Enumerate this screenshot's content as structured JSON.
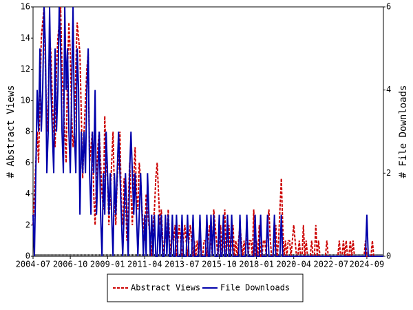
{
  "chart_data": {
    "type": "line",
    "x": [
      "2004-07",
      "2004-08",
      "2004-09",
      "2004-10",
      "2004-11",
      "2004-12",
      "2005-01",
      "2005-02",
      "2005-03",
      "2005-04",
      "2005-05",
      "2005-06",
      "2005-07",
      "2005-08",
      "2005-09",
      "2005-10",
      "2005-11",
      "2005-12",
      "2006-01",
      "2006-02",
      "2006-03",
      "2006-04",
      "2006-05",
      "2006-06",
      "2006-07",
      "2006-08",
      "2006-09",
      "2006-10",
      "2006-11",
      "2006-12",
      "2007-01",
      "2007-02",
      "2007-03",
      "2007-04",
      "2007-05",
      "2007-06",
      "2007-07",
      "2007-08",
      "2007-09",
      "2007-10",
      "2007-11",
      "2007-12",
      "2008-01",
      "2008-02",
      "2008-03",
      "2008-04",
      "2008-05",
      "2008-06",
      "2008-07",
      "2008-08",
      "2008-09",
      "2008-10",
      "2008-11",
      "2008-12",
      "2009-01",
      "2009-02",
      "2009-03",
      "2009-04",
      "2009-05",
      "2009-06",
      "2009-07",
      "2009-08",
      "2009-09",
      "2009-10",
      "2009-11",
      "2009-12",
      "2010-01",
      "2010-02",
      "2010-03",
      "2010-04",
      "2010-05",
      "2010-06",
      "2010-07",
      "2010-08",
      "2010-09",
      "2010-10",
      "2010-11",
      "2010-12",
      "2011-01",
      "2011-02",
      "2011-03",
      "2011-04",
      "2011-05",
      "2011-06",
      "2011-07",
      "2011-08",
      "2011-09",
      "2011-10",
      "2011-11",
      "2011-12",
      "2012-01",
      "2012-02",
      "2012-03",
      "2012-04",
      "2012-05",
      "2012-06",
      "2012-07",
      "2012-08",
      "2012-09",
      "2012-10",
      "2012-11",
      "2012-12",
      "2013-01",
      "2013-02",
      "2013-03",
      "2013-04",
      "2013-05",
      "2013-06",
      "2013-07",
      "2013-08",
      "2013-09",
      "2013-10",
      "2013-11",
      "2013-12",
      "2014-01",
      "2014-02",
      "2014-03",
      "2014-04",
      "2014-05",
      "2014-06",
      "2014-07",
      "2014-08",
      "2014-09",
      "2014-10",
      "2014-11",
      "2014-12",
      "2015-01",
      "2015-02",
      "2015-03",
      "2015-04",
      "2015-05",
      "2015-06",
      "2015-07",
      "2015-08",
      "2015-09",
      "2015-10",
      "2015-11",
      "2015-12",
      "2016-01",
      "2016-02",
      "2016-03",
      "2016-04",
      "2016-05",
      "2016-06",
      "2016-07",
      "2016-08",
      "2016-09",
      "2016-10",
      "2016-11",
      "2016-12",
      "2017-01",
      "2017-02",
      "2017-03",
      "2017-04",
      "2017-05",
      "2017-06",
      "2017-07",
      "2017-08",
      "2017-09",
      "2017-10",
      "2017-11",
      "2017-12",
      "2018-01",
      "2018-02",
      "2018-03",
      "2018-04",
      "2018-05",
      "2018-06",
      "2018-07",
      "2018-08",
      "2018-09",
      "2018-10",
      "2018-11",
      "2018-12",
      "2019-01",
      "2019-02",
      "2019-03",
      "2019-04",
      "2019-05",
      "2019-06",
      "2019-07",
      "2019-08",
      "2019-09",
      "2019-10",
      "2019-11",
      "2019-12",
      "2020-01",
      "2020-02",
      "2020-03",
      "2020-04",
      "2020-05",
      "2020-06",
      "2020-07",
      "2020-08",
      "2020-09",
      "2020-10",
      "2020-11",
      "2020-12",
      "2021-01",
      "2021-02",
      "2021-03",
      "2021-04",
      "2021-05",
      "2021-06",
      "2021-07",
      "2021-08",
      "2021-09",
      "2021-10",
      "2021-11",
      "2021-12",
      "2022-01",
      "2022-02",
      "2022-03",
      "2022-04",
      "2022-05",
      "2022-06",
      "2022-07",
      "2022-08",
      "2022-09",
      "2022-10",
      "2022-11",
      "2022-12",
      "2023-01",
      "2023-02",
      "2023-03",
      "2023-04",
      "2023-05",
      "2023-06",
      "2023-07",
      "2023-08",
      "2023-09",
      "2023-10",
      "2023-11",
      "2023-12",
      "2024-01",
      "2024-02",
      "2024-03",
      "2024-04",
      "2024-05",
      "2024-06",
      "2024-07",
      "2024-08",
      "2024-09",
      "2024-10",
      "2024-11",
      "2024-12",
      "2025-01",
      "2025-02",
      "2025-03",
      "2025-04",
      "2025-05",
      "2025-06",
      "2025-07",
      "2025-08",
      "2025-09"
    ],
    "xticks": [
      "2004-07",
      "2006-10",
      "2009-01",
      "2011-04",
      "2013-07",
      "2015-10",
      "2018-01",
      "2020-04",
      "2022-07",
      "2024-09"
    ],
    "ylabel": "# Abstract Views",
    "y2label": "# File Downloads",
    "ylim": [
      0,
      16
    ],
    "yticks": [
      0,
      2,
      4,
      6,
      8,
      10,
      12,
      14,
      16
    ],
    "y2lim": [
      0,
      6
    ],
    "y2ticks": [
      0,
      2,
      4,
      6
    ],
    "legend": "bottom",
    "series": [
      {
        "name": "Abstract Views",
        "color": "#cc0000",
        "dash": true,
        "values": [
          2,
          4,
          6,
          8,
          6,
          10,
          14,
          15,
          16,
          12,
          8,
          10,
          14,
          13,
          10,
          8,
          7,
          12,
          14,
          15,
          16,
          12,
          10,
          8,
          6,
          12,
          15,
          13,
          9,
          7,
          8,
          12,
          15,
          14,
          13,
          9,
          5,
          8,
          10,
          12,
          13,
          6,
          7,
          8,
          4,
          2,
          5,
          7,
          8,
          6,
          4,
          3,
          9,
          6,
          5,
          2,
          4,
          6,
          8,
          4,
          2,
          5,
          6,
          8,
          3,
          2,
          5,
          4,
          1,
          3,
          6,
          4,
          2,
          5,
          7,
          4,
          3,
          6,
          5,
          3,
          2,
          1,
          4,
          3,
          2,
          1,
          0,
          2,
          3,
          5,
          6,
          4,
          2,
          3,
          1,
          0,
          2,
          1,
          3,
          1,
          0,
          2,
          1,
          2,
          0,
          1,
          2,
          1,
          0,
          1,
          2,
          1,
          0,
          1,
          2,
          1,
          0,
          1,
          0,
          1,
          0,
          1,
          0,
          0,
          1,
          1,
          0,
          1,
          2,
          1,
          0,
          3,
          2,
          1,
          0,
          1,
          2,
          0,
          1,
          3,
          0,
          1,
          2,
          0,
          1,
          2,
          0,
          1,
          0,
          1,
          2,
          1,
          0,
          1,
          0,
          2,
          0,
          1,
          1,
          0,
          3,
          0,
          1,
          0,
          2,
          0,
          0,
          1,
          1,
          0,
          2,
          3,
          1,
          0,
          0,
          1,
          2,
          0,
          1,
          3,
          5,
          2,
          0,
          1,
          0,
          1,
          1,
          0,
          1,
          2,
          1,
          0,
          0,
          1,
          0,
          0,
          2,
          0,
          1,
          0,
          0,
          0,
          1,
          0,
          0,
          2,
          0,
          1,
          0,
          0,
          0,
          0,
          0,
          1,
          0,
          0,
          0,
          0,
          0,
          0,
          0,
          0,
          1,
          0,
          0,
          1,
          0,
          1,
          0,
          0,
          1,
          0,
          1,
          0,
          0,
          0,
          0,
          0,
          0,
          0,
          0,
          1,
          0,
          0,
          0,
          0,
          1,
          0,
          0,
          0,
          0,
          0,
          0,
          0,
          0
        ]
      },
      {
        "name": "File Downloads",
        "color": "#0000aa",
        "axis": "y2",
        "values": [
          1,
          0,
          2,
          4,
          3,
          5,
          3,
          4,
          6,
          5,
          2,
          3,
          6,
          4,
          3,
          2,
          5,
          3,
          4,
          6,
          5,
          3,
          2,
          6,
          4,
          5,
          3,
          2,
          4,
          6,
          3,
          2,
          5,
          4,
          1,
          3,
          2,
          3,
          2,
          4,
          5,
          2,
          1,
          3,
          2,
          4,
          1,
          2,
          3,
          1,
          0,
          2,
          1,
          3,
          2,
          1,
          2,
          1,
          0,
          2,
          1,
          2,
          3,
          2,
          1,
          0,
          1,
          2,
          1,
          0,
          2,
          3,
          2,
          1,
          2,
          1,
          0,
          1,
          2,
          1,
          0,
          1,
          0,
          2,
          1,
          0,
          1,
          0,
          1,
          0,
          0,
          1,
          0,
          1,
          0,
          0,
          1,
          0,
          1,
          0,
          0,
          1,
          0,
          0,
          1,
          0,
          0,
          0,
          1,
          0,
          0,
          0,
          1,
          0,
          0,
          0,
          1,
          0,
          0,
          0,
          0,
          1,
          0,
          0,
          0,
          0,
          1,
          0,
          0,
          1,
          0,
          1,
          0,
          0,
          0,
          1,
          0,
          0,
          1,
          0,
          0,
          1,
          0,
          0,
          1,
          0,
          0,
          0,
          0,
          0,
          1,
          0,
          0,
          0,
          0,
          1,
          0,
          0,
          0,
          0,
          0,
          1,
          0,
          0,
          0,
          1,
          0,
          0,
          0,
          0,
          1,
          0,
          0,
          0,
          0,
          1,
          0,
          0,
          0,
          0,
          1,
          0,
          0,
          0,
          0,
          0,
          0,
          0,
          0,
          0,
          0,
          0,
          0,
          0,
          0,
          0,
          0,
          0,
          0,
          0,
          0,
          0,
          0,
          0,
          0,
          0,
          0,
          0,
          0,
          0,
          0,
          0,
          0,
          0,
          0,
          0,
          0,
          0,
          0,
          0,
          0,
          0,
          0,
          0,
          0,
          0,
          0,
          0,
          0,
          0,
          0,
          0,
          0,
          0,
          0,
          0,
          0,
          0,
          0,
          0,
          0,
          0,
          1,
          0,
          0,
          0,
          0,
          0,
          0,
          0,
          0,
          0,
          0,
          0,
          0
        ]
      }
    ]
  }
}
